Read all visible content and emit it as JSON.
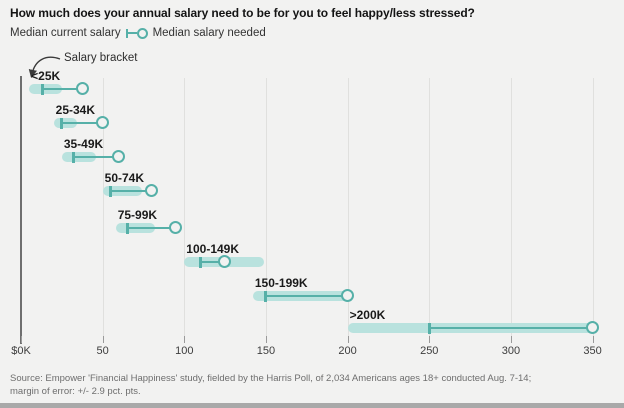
{
  "title": "How much does your annual salary need to be for you to feel happy/less stressed?",
  "legend": {
    "current_label": "Median current salary",
    "needed_label": "Median salary needed"
  },
  "annotation": "Salary bracket",
  "footer": {
    "line1": "Source: Empower 'Financial Happiness' study, fielded by the Harris Poll, of 2,034 Americans ages 18+ conducted Aug. 7-14;",
    "line2": "margin of error: +/- 2.9 pct. pts."
  },
  "colors": {
    "background": "#f2f2f1",
    "band": "#b9e2de",
    "accent": "#56b0a8",
    "grid": "#e0e0de"
  },
  "chart_data": {
    "type": "dumbbell",
    "title": "How much does your annual salary need to be for you to feel happy/less stressed?",
    "x_unit": "thousand US dollars",
    "x_range_k": [
      0,
      350
    ],
    "grid": "vertical, light",
    "legend_position": "top-left",
    "x_ticks": [
      {
        "label": "$0K",
        "value": 0
      },
      {
        "label": "50",
        "value": 50
      },
      {
        "label": "100",
        "value": 100
      },
      {
        "label": "150",
        "value": 150
      },
      {
        "label": "200",
        "value": 200
      },
      {
        "label": "250",
        "value": 250
      },
      {
        "label": "300",
        "value": 300
      },
      {
        "label": "350",
        "value": 350
      }
    ],
    "rows": [
      {
        "bracket": "<25K",
        "median_current_k": 13,
        "median_needed_k": 38,
        "band_k": [
          5,
          25
        ]
      },
      {
        "bracket": "25-34K",
        "median_current_k": 25,
        "median_needed_k": 50,
        "band_k": [
          20,
          34
        ]
      },
      {
        "bracket": "35-49K",
        "median_current_k": 32,
        "median_needed_k": 60,
        "band_k": [
          25,
          46
        ]
      },
      {
        "bracket": "50-74K",
        "median_current_k": 55,
        "median_needed_k": 80,
        "band_k": [
          50,
          74
        ]
      },
      {
        "bracket": "75-99K",
        "median_current_k": 65,
        "median_needed_k": 95,
        "band_k": [
          58,
          82
        ]
      },
      {
        "bracket": "100-149K",
        "median_current_k": 110,
        "median_needed_k": 125,
        "band_k": [
          100,
          149
        ]
      },
      {
        "bracket": "150-199K",
        "median_current_k": 150,
        "median_needed_k": 200,
        "band_k": [
          142,
          200
        ]
      },
      {
        "bracket": ">200K",
        "median_current_k": 250,
        "median_needed_k": 350,
        "band_k": [
          200,
          350
        ]
      }
    ]
  }
}
